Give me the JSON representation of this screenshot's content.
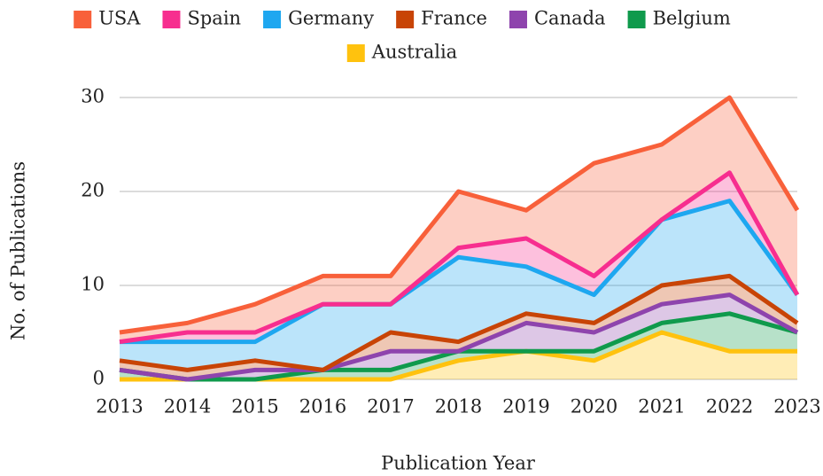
{
  "chart_data": {
    "type": "stacked_area",
    "x_label": "Publication Year",
    "y_label": "No. of Publications",
    "categories": [
      "2013",
      "2014",
      "2015",
      "2016",
      "2017",
      "2018",
      "2019",
      "2020",
      "2021",
      "2022",
      "2023"
    ],
    "series": [
      {
        "name": "USA",
        "color": "#f8603a",
        "values": [
          1,
          1,
          3,
          3,
          3,
          6,
          3,
          12,
          8,
          8,
          9
        ]
      },
      {
        "name": "Spain",
        "color": "#f72e8f",
        "values": [
          0,
          1,
          1,
          0,
          0,
          1,
          3,
          2,
          0,
          3,
          0
        ]
      },
      {
        "name": "Germany",
        "color": "#1ea7f0",
        "values": [
          2,
          3,
          2,
          7,
          3,
          9,
          5,
          3,
          7,
          8,
          3
        ]
      },
      {
        "name": "France",
        "color": "#c84406",
        "values": [
          1,
          1,
          1,
          0,
          2,
          1,
          1,
          1,
          2,
          2,
          1
        ]
      },
      {
        "name": "Canada",
        "color": "#8e44ad",
        "values": [
          0,
          0,
          1,
          0,
          2,
          0,
          3,
          2,
          2,
          2,
          0
        ]
      },
      {
        "name": "Belgium",
        "color": "#0f9a4c",
        "values": [
          1,
          0,
          0,
          1,
          1,
          1,
          0,
          1,
          1,
          4,
          2
        ]
      },
      {
        "name": "Australia",
        "color": "#ffc20e",
        "values": [
          0,
          0,
          0,
          0,
          0,
          2,
          3,
          2,
          5,
          3,
          3
        ]
      }
    ],
    "ylim": [
      0,
      30
    ],
    "yticks": [
      0,
      10,
      20,
      30
    ],
    "grid": true,
    "legend": "top"
  }
}
